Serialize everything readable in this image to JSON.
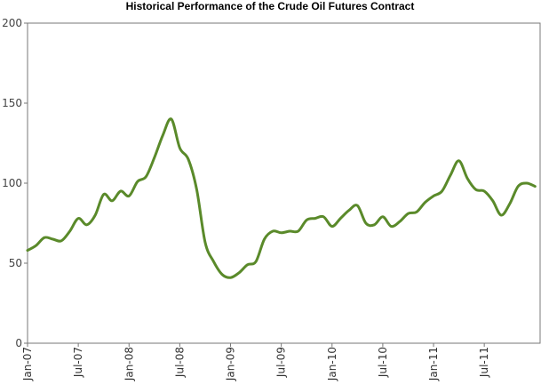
{
  "chart_data": {
    "type": "line",
    "title": "Historical Performance of the Crude Oil Futures Contract",
    "xlabel": "",
    "ylabel": "",
    "ylim": [
      0,
      200
    ],
    "yticks": [
      0,
      50,
      100,
      150,
      200
    ],
    "x_tick_labels": [
      "Jan-07",
      "Jul-07",
      "Jan-08",
      "Jul-08",
      "Jan-09",
      "Jul-09",
      "Jan-10",
      "Jul-10",
      "Jan-11",
      "Jul-11"
    ],
    "grid": false,
    "legend": "none",
    "line_color": "#5a8a2a",
    "series": [
      {
        "x": [
          "2007-01",
          "2007-02",
          "2007-03",
          "2007-04",
          "2007-05",
          "2007-06",
          "2007-07",
          "2007-08",
          "2007-09",
          "2007-10",
          "2007-11",
          "2007-12",
          "2008-01",
          "2008-02",
          "2008-03",
          "2008-04",
          "2008-05",
          "2008-06",
          "2008-07",
          "2008-08",
          "2008-09",
          "2008-10",
          "2008-11",
          "2008-12",
          "2009-01",
          "2009-02",
          "2009-03",
          "2009-04",
          "2009-05",
          "2009-06",
          "2009-07",
          "2009-08",
          "2009-09",
          "2009-10",
          "2009-11",
          "2009-12",
          "2010-01",
          "2010-02",
          "2010-03",
          "2010-04",
          "2010-05",
          "2010-06",
          "2010-07",
          "2010-08",
          "2010-09",
          "2010-10",
          "2010-11",
          "2010-12",
          "2011-01",
          "2011-02",
          "2011-03",
          "2011-04",
          "2011-05",
          "2011-06",
          "2011-07",
          "2011-08",
          "2011-09",
          "2011-10",
          "2011-11",
          "2011-12",
          "2012-01"
        ],
        "values": [
          58,
          61,
          66,
          65,
          64,
          70,
          78,
          74,
          80,
          93,
          89,
          95,
          92,
          101,
          104,
          116,
          130,
          140,
          122,
          115,
          96,
          63,
          51,
          43,
          41,
          44,
          49,
          51,
          65,
          70,
          69,
          70,
          70,
          77,
          78,
          79,
          73,
          78,
          83,
          86,
          75,
          74,
          79,
          73,
          76,
          81,
          82,
          88,
          92,
          95,
          105,
          114,
          103,
          96,
          95,
          89,
          80,
          87,
          98,
          100,
          98
        ]
      }
    ]
  }
}
